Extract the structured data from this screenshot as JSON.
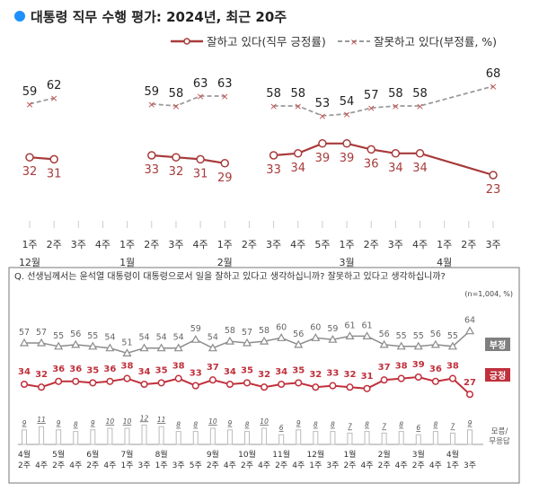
{
  "chart_data": [
    {
      "type": "line",
      "title": "대통령 직무 수행 평가: 2024년, 최근 20주",
      "title_dot_color": "#1e90ff",
      "x_week_labels": [
        "1주",
        "2주",
        "3주",
        "4주",
        "1주",
        "2주",
        "3주",
        "4주",
        "1주",
        "2주",
        "3주",
        "4주",
        "5주",
        "1주",
        "2주",
        "3주",
        "4주",
        "1주",
        "2주",
        "3주"
      ],
      "x_month_labels": [
        {
          "index": 0,
          "label": "12월"
        },
        {
          "index": 4,
          "label": "1월"
        },
        {
          "index": 8,
          "label": "2월"
        },
        {
          "index": 13,
          "label": "3월"
        },
        {
          "index": 17,
          "label": "4월"
        }
      ],
      "segments": [
        [
          0,
          1
        ],
        [
          5,
          8
        ],
        [
          10,
          19
        ]
      ],
      "series": [
        {
          "name": "잘하고 있다(직무 긍정률)",
          "color": "#a83a3a",
          "style": "solid-circle",
          "values": [
            32,
            31,
            null,
            null,
            null,
            33,
            32,
            31,
            29,
            null,
            33,
            34,
            39,
            39,
            36,
            34,
            34,
            null,
            null,
            23
          ]
        },
        {
          "name": "잘못하고 있다(부정률, %)",
          "color": "#9a9a9a",
          "marker_color": "#c0504d",
          "style": "dashed-x",
          "values": [
            59,
            62,
            null,
            null,
            null,
            59,
            58,
            63,
            63,
            null,
            58,
            58,
            53,
            54,
            57,
            58,
            58,
            null,
            null,
            68
          ]
        }
      ],
      "grid": false,
      "legend": "top-right"
    },
    {
      "type": "line",
      "title": "Q. 선생님께서는 윤석열 대통령이 대통령으로서 일을 잘하고 있다고 생각하십니까? 잘못하고 있다고 생각하십니까?",
      "note": "(n=1,004, %)",
      "x_week_labels": [
        "2주",
        "4주",
        "2주",
        "4주",
        "2주",
        "4주",
        "1주",
        "3주",
        "1주",
        "3주",
        "5주",
        "2주",
        "4주",
        "2주",
        "4주",
        "2주",
        "4주",
        "1주",
        "3주",
        "2주",
        "4주",
        "2주",
        "4주",
        "2주",
        "4주",
        "1주",
        "3주"
      ],
      "x_month_labels": [
        {
          "index": 0,
          "label": "4월"
        },
        {
          "index": 2,
          "label": "5월"
        },
        {
          "index": 4,
          "label": "6월"
        },
        {
          "index": 6,
          "label": "7월"
        },
        {
          "index": 8,
          "label": "8월"
        },
        {
          "index": 11,
          "label": "9월"
        },
        {
          "index": 13,
          "label": "10월"
        },
        {
          "index": 15,
          "label": "11월"
        },
        {
          "index": 17,
          "label": "12월"
        },
        {
          "index": 19,
          "label": "1월"
        },
        {
          "index": 21,
          "label": "2월"
        },
        {
          "index": 23,
          "label": "3월"
        },
        {
          "index": 25,
          "label": "4월"
        }
      ],
      "series": [
        {
          "name": "부정",
          "color": "#8c8c8c",
          "values": [
            57,
            57,
            55,
            56,
            55,
            54,
            51,
            54,
            54,
            54,
            59,
            54,
            58,
            57,
            58,
            60,
            56,
            60,
            59,
            61,
            61,
            56,
            55,
            55,
            56,
            55,
            64
          ]
        },
        {
          "name": "긍정",
          "color": "#c0303c",
          "values": [
            34,
            32,
            36,
            36,
            35,
            36,
            38,
            34,
            35,
            38,
            33,
            37,
            34,
            35,
            32,
            34,
            35,
            32,
            33,
            32,
            31,
            37,
            38,
            39,
            36,
            38,
            27
          ]
        },
        {
          "name": "모름/무응답",
          "type": "bar",
          "color": "#bbbbbb",
          "values": [
            9,
            11,
            9,
            8,
            9,
            10,
            10,
            12,
            11,
            8,
            8,
            10,
            9,
            8,
            10,
            6,
            9,
            8,
            8,
            7,
            8,
            7,
            8,
            6,
            8,
            7,
            9
          ]
        }
      ],
      "grid": false,
      "legend": "right"
    }
  ]
}
